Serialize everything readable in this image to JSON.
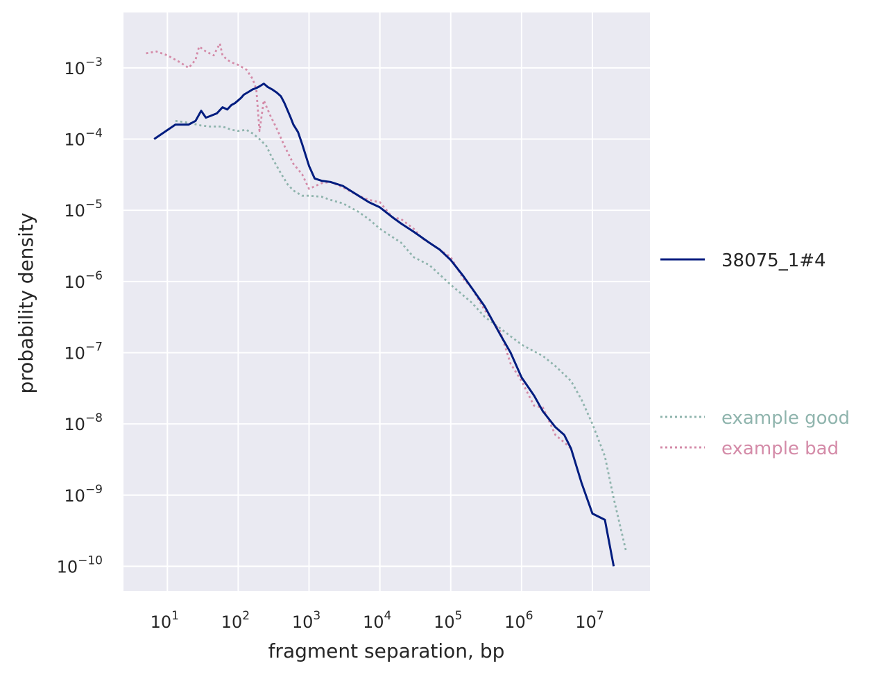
{
  "chart_data": {
    "type": "line",
    "title": "",
    "xlabel": "fragment separation, bp",
    "ylabel": "probability density",
    "xscale": "log",
    "yscale": "log",
    "xlim": [
      2.4,
      65000000
    ],
    "ylim": [
      4.5e-11,
      0.006
    ],
    "grid": true,
    "background": "#eaeaf2",
    "x_ticks": [
      {
        "base": "10",
        "exp": "1",
        "value": 10
      },
      {
        "base": "10",
        "exp": "2",
        "value": 100
      },
      {
        "base": "10",
        "exp": "3",
        "value": 1000
      },
      {
        "base": "10",
        "exp": "4",
        "value": 10000
      },
      {
        "base": "10",
        "exp": "5",
        "value": 100000
      },
      {
        "base": "10",
        "exp": "6",
        "value": 1000000
      },
      {
        "base": "10",
        "exp": "7",
        "value": 10000000
      }
    ],
    "y_ticks": [
      {
        "base": "10",
        "exp": "−3",
        "value": 0.001
      },
      {
        "base": "10",
        "exp": "−4",
        "value": 0.0001
      },
      {
        "base": "10",
        "exp": "−5",
        "value": 1e-05
      },
      {
        "base": "10",
        "exp": "−6",
        "value": 1e-06
      },
      {
        "base": "10",
        "exp": "−7",
        "value": 1e-07
      },
      {
        "base": "10",
        "exp": "−8",
        "value": 1e-08
      },
      {
        "base": "10",
        "exp": "−9",
        "value": 1e-09
      },
      {
        "base": "10",
        "exp": "−10",
        "value": 1e-10
      }
    ],
    "series": [
      {
        "name": "38075_1#4",
        "color": "#001c7f",
        "style": "solid",
        "x": [
          6.5,
          13,
          20,
          25,
          30,
          35,
          40,
          50,
          60,
          70,
          80,
          90,
          100,
          110,
          120,
          140,
          160,
          180,
          200,
          230,
          260,
          300,
          350,
          400,
          450,
          500,
          550,
          600,
          700,
          800,
          1000,
          1200,
          1500,
          2000,
          3000,
          5000,
          7000,
          10000,
          15000,
          20000,
          30000,
          50000,
          70000,
          100000,
          150000,
          200000,
          300000,
          500000,
          700000,
          1000000,
          1500000,
          2000000,
          3000000,
          4000000,
          5000000,
          7000000,
          10000000,
          15000000,
          20000000
        ],
        "y": [
          0.0001,
          0.00016,
          0.00016,
          0.00018,
          0.00025,
          0.0002,
          0.00021,
          0.00023,
          0.00028,
          0.00026,
          0.0003,
          0.00032,
          0.00035,
          0.00038,
          0.00042,
          0.00046,
          0.0005,
          0.00052,
          0.00055,
          0.0006,
          0.00054,
          0.0005,
          0.00045,
          0.0004,
          0.00032,
          0.00025,
          0.0002,
          0.00016,
          0.000125,
          8.5e-05,
          4.2e-05,
          2.8e-05,
          2.6e-05,
          2.5e-05,
          2.2e-05,
          1.6e-05,
          1.3e-05,
          1.1e-05,
          8e-06,
          6.5e-06,
          5e-06,
          3.5e-06,
          2.8e-06,
          2e-06,
          1.2e-06,
          8e-07,
          4.5e-07,
          1.8e-07,
          1e-07,
          4.5e-08,
          2.5e-08,
          1.5e-08,
          9e-09,
          7e-09,
          4.5e-09,
          1.5e-09,
          5.5e-10,
          4.5e-10,
          1e-10
        ]
      },
      {
        "name": "example good",
        "color": "#8fb4ad",
        "style": "dotted",
        "x": [
          13,
          20,
          30,
          40,
          60,
          80,
          100,
          130,
          160,
          200,
          250,
          300,
          400,
          500,
          600,
          800,
          1000,
          1500,
          2000,
          3000,
          5000,
          7000,
          10000,
          20000,
          30000,
          50000,
          100000,
          200000,
          300000,
          500000,
          700000,
          1000000,
          2000000,
          3000000,
          5000000,
          7000000,
          10000000,
          15000000,
          20000000,
          30000000
        ],
        "y": [
          0.00018,
          0.00017,
          0.000155,
          0.00015,
          0.00015,
          0.000135,
          0.00013,
          0.000135,
          0.00012,
          0.0001,
          8e-05,
          5.5e-05,
          3.3e-05,
          2.3e-05,
          1.9e-05,
          1.6e-05,
          1.6e-05,
          1.55e-05,
          1.4e-05,
          1.25e-05,
          9.5e-06,
          7.5e-06,
          5.5e-06,
          3.5e-06,
          2.2e-06,
          1.7e-06,
          9e-07,
          5e-07,
          3.2e-07,
          2.2e-07,
          1.7e-07,
          1.3e-07,
          9e-08,
          6.5e-08,
          4e-08,
          2.2e-08,
          1e-08,
          3.5e-09,
          9e-10,
          1.6e-10
        ]
      },
      {
        "name": "example bad",
        "color": "#d48ba8",
        "style": "dotted",
        "x": [
          5,
          7,
          10,
          15,
          20,
          25,
          28,
          35,
          45,
          55,
          60,
          70,
          80,
          100,
          130,
          160,
          180,
          200,
          230,
          280,
          350,
          450,
          600,
          800,
          1000,
          1500,
          2000,
          3000,
          5000,
          7000,
          10000,
          15000,
          20000,
          30000,
          40000,
          50000,
          70000,
          100000,
          150000,
          200000,
          300000,
          500000,
          700000,
          1000000,
          1500000,
          2000000,
          3000000,
          4000000,
          5000000
        ],
        "y": [
          0.0016,
          0.0017,
          0.0015,
          0.0012,
          0.001,
          0.0013,
          0.002,
          0.0017,
          0.0015,
          0.0022,
          0.0015,
          0.0013,
          0.0012,
          0.0011,
          0.00095,
          0.0007,
          0.0005,
          0.00013,
          0.00035,
          0.00022,
          0.00014,
          8e-05,
          4.5e-05,
          3.2e-05,
          2e-05,
          2.4e-05,
          2.5e-05,
          2.1e-05,
          1.6e-05,
          1.4e-05,
          1.3e-05,
          8e-06,
          7.5e-06,
          5.5e-06,
          4e-06,
          3.5e-06,
          2.8e-06,
          2.2e-06,
          1.1e-06,
          8e-07,
          4e-07,
          2e-07,
          7e-08,
          4e-08,
          1.8e-08,
          1.7e-08,
          7e-09,
          5.5e-09,
          4.5e-09
        ]
      }
    ],
    "legend": {
      "placement": "outside-right",
      "main": [
        "38075_1#4"
      ],
      "reference": [
        "example good",
        "example bad"
      ]
    }
  }
}
